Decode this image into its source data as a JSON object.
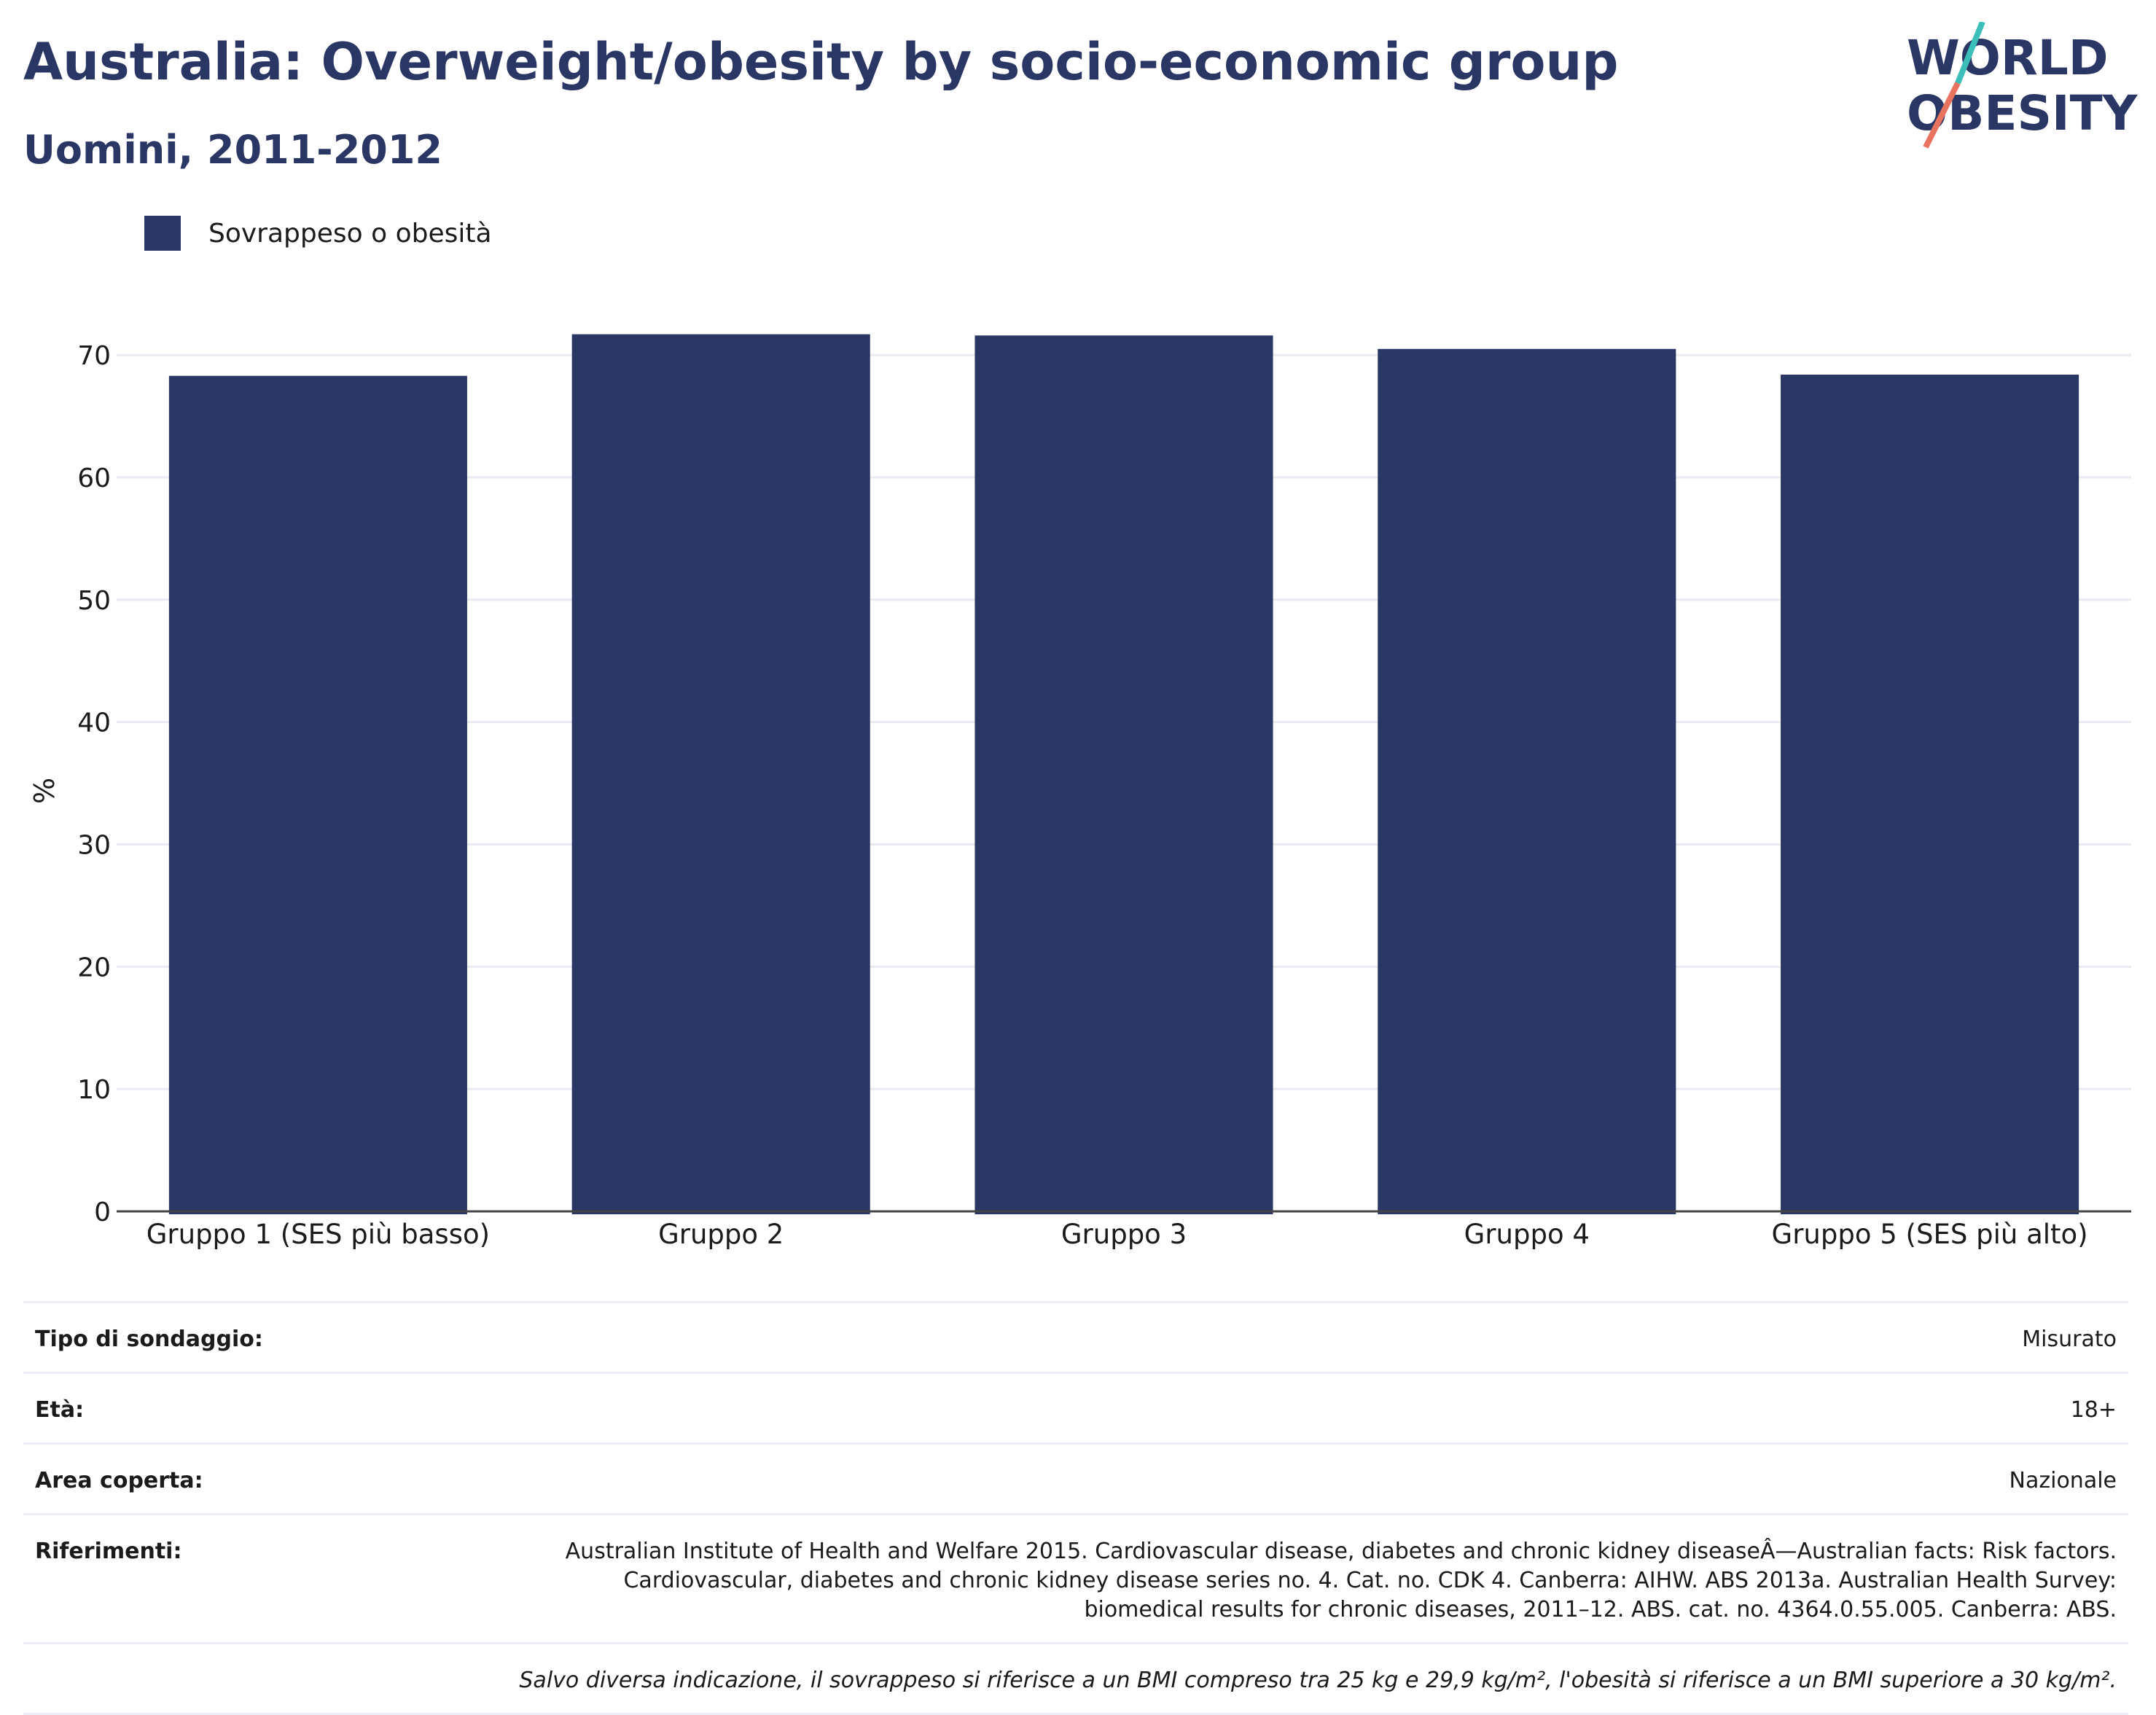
{
  "header": {
    "title": "Australia: Overweight/obesity by socio-economic group",
    "subtitle": "Uomini, 2011-2012"
  },
  "logo": {
    "line1": "WORLD",
    "line2": "OBESITY",
    "colors": {
      "text": "#2a3663",
      "slash_top": "#3bbfb8",
      "slash_bottom": "#e8735f"
    }
  },
  "legend": {
    "label": "Sovrappeso o obesità",
    "color": "#2a3663"
  },
  "chart_data": {
    "type": "bar",
    "title": "Australia: Overweight/obesity by socio-economic group",
    "subtitle": "Uomini, 2011-2012",
    "ylabel": "%",
    "xlabel": "",
    "categories": [
      "Gruppo 1 (SES più basso)",
      "Gruppo 2",
      "Gruppo 3",
      "Gruppo 4",
      "Gruppo 5 (SES più alto)"
    ],
    "series": [
      {
        "name": "Sovrappeso o obesità",
        "values": [
          68.3,
          71.7,
          71.6,
          70.5,
          68.4
        ],
        "color": "#2a3663"
      }
    ],
    "ylim": [
      0,
      74
    ],
    "yticks": [
      0,
      10,
      20,
      30,
      40,
      50,
      60,
      70
    ],
    "grid": true,
    "legend_position": "top-left"
  },
  "info": {
    "rows": [
      {
        "key": "Tipo di sondaggio:",
        "value": "Misurato"
      },
      {
        "key": "Età:",
        "value": "18+"
      },
      {
        "key": "Area coperta:",
        "value": "Nazionale"
      },
      {
        "key": "Riferimenti:",
        "value": "Australian Institute of Health and Welfare 2015. Cardiovascular disease, diabetes and chronic kidney diseaseÂ—Australian facts: Risk factors. Cardiovascular, diabetes and chronic kidney disease series no. 4. Cat. no. CDK 4. Canberra: AIHW. ABS 2013a. Australian Health Survey: biomedical results for chronic diseases, 2011–12. ABS. cat. no. 4364.0.55.005. Canberra: ABS."
      }
    ],
    "note": "Salvo diversa indicazione, il sovrappeso si riferisce a un BMI compreso tra 25 kg e 29,9 kg/m², l'obesità si riferisce a un BMI superiore a 30 kg/m²."
  }
}
